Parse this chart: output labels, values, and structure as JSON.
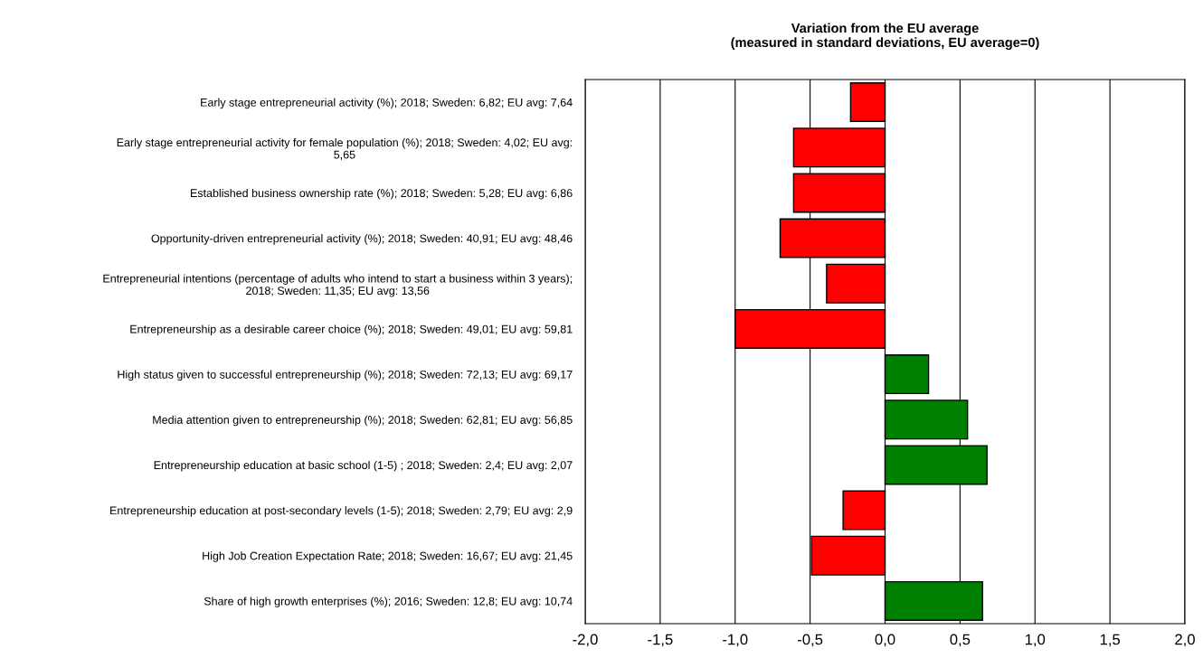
{
  "chart_data": {
    "type": "bar",
    "orientation": "horizontal",
    "title": "Variation from the EU average\n(measured in standard deviations, EU average=0)",
    "categories": [
      "Early stage entrepreneurial activity (%); 2018; Sweden: 6,82; EU avg: 7,64",
      "Early stage entrepreneurial activity for female population (%); 2018; Sweden: 4,02; EU avg:\n5,65",
      "Established business ownership rate (%); 2018; Sweden: 5,28; EU avg: 6,86",
      "Opportunity-driven entrepreneurial activity (%); 2018; Sweden: 40,91; EU avg: 48,46",
      "Entrepreneurial intentions (percentage of adults who intend to start a business within 3 years);\n2018; Sweden: 11,35; EU avg: 13,56",
      "Entrepreneurship as a desirable career choice (%); 2018; Sweden: 49,01; EU avg: 59,81",
      "High status given to successful entrepreneurship (%); 2018; Sweden: 72,13; EU avg: 69,17",
      "Media attention given to entrepreneurship (%); 2018; Sweden: 62,81; EU avg: 56,85",
      "Entrepreneurship education at basic school (1-5) ; 2018; Sweden: 2,4; EU avg: 2,07",
      "Entrepreneurship education at post-secondary levels (1-5); 2018; Sweden: 2,79; EU avg: 2,9",
      "High Job Creation Expectation Rate; 2018; Sweden: 16,67; EU avg: 21,45",
      "Share of high growth enterprises (%); 2016; Sweden: 12,8; EU avg: 10,74"
    ],
    "values": [
      -0.23,
      -0.61,
      -0.61,
      -0.7,
      -0.39,
      -1.0,
      0.29,
      0.55,
      0.68,
      -0.28,
      -0.49,
      0.65
    ],
    "colors": [
      "#ff0000",
      "#ff0000",
      "#ff0000",
      "#ff0000",
      "#ff0000",
      "#ff0000",
      "#008000",
      "#008000",
      "#008000",
      "#ff0000",
      "#ff0000",
      "#008000"
    ],
    "xlim": [
      -2,
      2
    ],
    "xticks": [
      {
        "value": -2,
        "label": "-2,0"
      },
      {
        "value": -1.5,
        "label": "-1,5"
      },
      {
        "value": -1,
        "label": "-1,0"
      },
      {
        "value": -0.5,
        "label": "-0,5"
      },
      {
        "value": 0,
        "label": "0,0"
      },
      {
        "value": 0.5,
        "label": "0,5"
      },
      {
        "value": 1,
        "label": "1,0"
      },
      {
        "value": 1.5,
        "label": "1,5"
      },
      {
        "value": 2,
        "label": "2,0"
      }
    ],
    "grid": "x"
  }
}
